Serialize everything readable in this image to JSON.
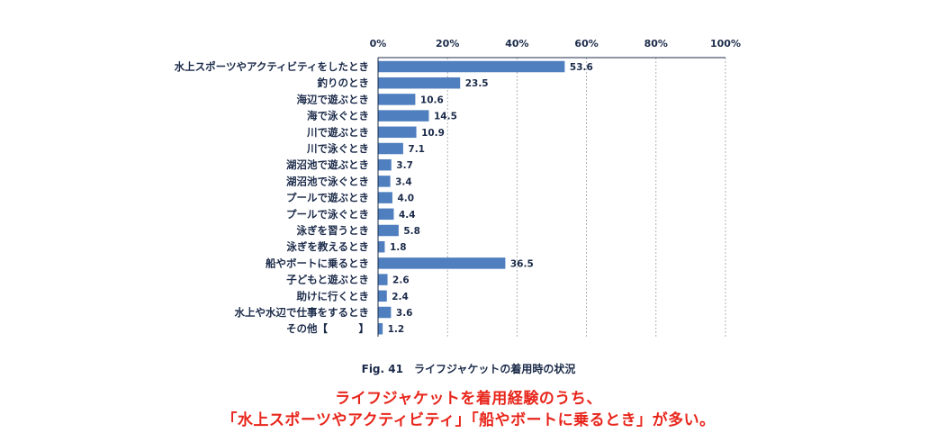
{
  "chart_data": {
    "type": "bar",
    "orientation": "horizontal",
    "title": "Fig. 41　ライフジャケットの着用時の状況",
    "xlim": [
      0,
      100
    ],
    "x_ticks": [
      "0%",
      "20%",
      "40%",
      "60%",
      "80%",
      "100%"
    ],
    "x_tick_values": [
      0,
      20,
      40,
      60,
      80,
      100
    ],
    "grid": true,
    "categories": [
      "水上スポーツやアクティビティをしたとき",
      "釣りのとき",
      "海辺で遊ぶとき",
      "海で泳ぐとき",
      "川で遊ぶとき",
      "川で泳ぐとき",
      "湖沼池で遊ぶとき",
      "湖沼池で泳ぐとき",
      "プールで遊ぶとき",
      "プールで泳ぐとき",
      "泳ぎを習うとき",
      "泳ぎを教えるとき",
      "船やボートに乗るとき",
      "子どもと遊ぶとき",
      "助けに行くとき",
      "水上や水辺で仕事をするとき",
      "その他【　　　】"
    ],
    "values": [
      53.6,
      23.5,
      10.6,
      14.5,
      10.9,
      7.1,
      3.7,
      3.4,
      4.0,
      4.4,
      5.8,
      1.8,
      36.5,
      2.6,
      2.4,
      3.6,
      1.2
    ],
    "value_labels": [
      "53.6",
      "23.5",
      "10.6",
      "14.5",
      "10.9",
      "7.1",
      "3.7",
      "3.4",
      "4.0",
      "4.4",
      "5.8",
      "1.8",
      "36.5",
      "2.6",
      "2.4",
      "3.6",
      "1.2"
    ],
    "bar_color": "#4f7fbf"
  },
  "caption": "Fig. 41　ライフジャケットの着用時の状況",
  "headline": {
    "line1": "ライフジャケットを着用経験のうち、",
    "line2": "「水上スポーツやアクティビティ」「船やボートに乗るとき」が多い。"
  },
  "colors": {
    "bar": "#4f7fbf",
    "text": "#1c2b4a",
    "grid": "#9aa0a6",
    "axis": "#1c2b4a",
    "headline": "#e8261c"
  }
}
